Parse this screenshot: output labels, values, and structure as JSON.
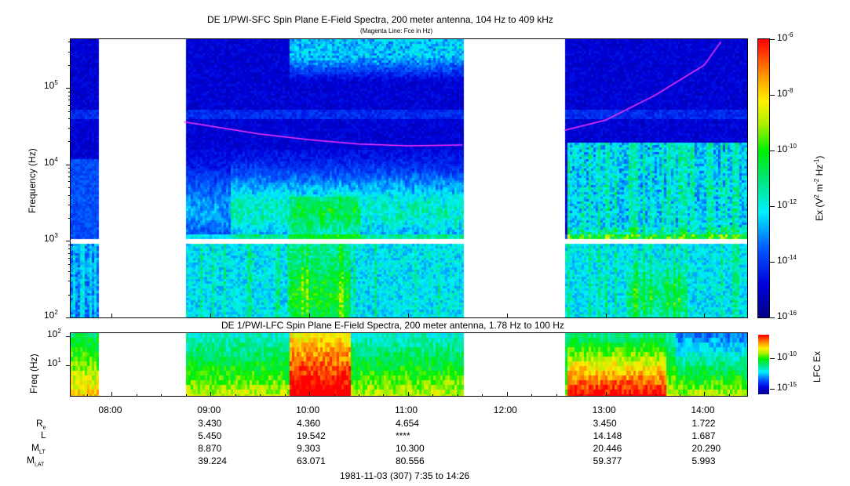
{
  "chart_data": [
    {
      "type": "heatmap",
      "title": "DE 1/PWI-SFC  Spin Plane E-Field Spectra, 200 meter antenna, 104 Hz to 409 kHz",
      "subtitle": "(Magenta Line: Fce in Hz)",
      "ylabel": "Frequency (Hz)",
      "yscale": "log",
      "ylim": [
        100,
        409000
      ],
      "yticks": [
        {
          "v": 100,
          "label": "10",
          "exp": "2"
        },
        {
          "v": 1000,
          "label": "10",
          "exp": "3"
        },
        {
          "v": 10000,
          "label": "10",
          "exp": "4"
        },
        {
          "v": 100000,
          "label": "10",
          "exp": "5"
        }
      ],
      "xlim": [
        "07:35",
        "14:26"
      ],
      "data_gaps": [
        [
          "07:52",
          "08:44"
        ],
        [
          "11:33",
          "12:35"
        ]
      ],
      "colorbar": {
        "label": "Ex (V",
        "label_full": "Ex (V^2 m^-2 Hz^-1)",
        "scale": "log",
        "range": [
          1e-16,
          1e-06
        ],
        "ticks": [
          {
            "v": -6,
            "label": "10",
            "exp": "-6"
          },
          {
            "v": -8,
            "label": "10",
            "exp": "-8"
          },
          {
            "v": -10,
            "label": "10",
            "exp": "-10"
          },
          {
            "v": -12,
            "label": "10",
            "exp": "-12"
          },
          {
            "v": -14,
            "label": "10",
            "exp": "-14"
          },
          {
            "v": -16,
            "label": "10",
            "exp": "-16"
          }
        ],
        "colormap": "rainbow (dark blue to red)"
      },
      "overlay_line": {
        "name": "Fce",
        "color": "#ff33ff",
        "points": [
          [
            "08:44",
            36000
          ],
          [
            "09:30",
            25000
          ],
          [
            "10:00",
            21000
          ],
          [
            "10:30",
            18500
          ],
          [
            "11:00",
            17500
          ],
          [
            "11:33",
            18000
          ],
          [
            "12:35",
            28000
          ],
          [
            "13:00",
            38000
          ],
          [
            "13:30",
            80000
          ],
          [
            "14:00",
            200000
          ],
          [
            "14:10",
            400000
          ]
        ]
      }
    },
    {
      "type": "heatmap",
      "title": "DE 1/PWI-LFC  Spin Plane E-Field Spectra, 200 meter antenna, 1.78 Hz to 100 Hz",
      "ylabel": "Freq (Hz)",
      "yscale": "log",
      "ylim": [
        1.78,
        100
      ],
      "yticks": [
        {
          "v": 10,
          "label": "10",
          "exp": "1"
        },
        {
          "v": 100,
          "label": "10",
          "exp": "2"
        }
      ],
      "xlim": [
        "07:35",
        "14:26"
      ],
      "data_gaps": [
        [
          "07:52",
          "08:44"
        ],
        [
          "11:33",
          "12:35"
        ]
      ],
      "colorbar": {
        "label": "LFC Ex",
        "scale": "log",
        "ticks": [
          {
            "v": -10,
            "label": "10",
            "exp": "-10"
          },
          {
            "v": -15,
            "label": "10",
            "exp": "-15"
          }
        ]
      }
    }
  ],
  "xaxis": {
    "ticks": [
      "08:00",
      "09:00",
      "10:00",
      "11:00",
      "12:00",
      "13:00",
      "14:00"
    ]
  },
  "ephemeris": {
    "rows": [
      {
        "label": "R",
        "sub": "e",
        "values": [
          "3.430",
          "4.360",
          "4.654",
          "",
          "3.450",
          "1.722"
        ]
      },
      {
        "label": "L",
        "sub": "",
        "values": [
          "5.450",
          "19.542",
          "****",
          "",
          "14.148",
          "1.687"
        ]
      },
      {
        "label": "M",
        "sub": "LT",
        "values": [
          "8.870",
          "9.303",
          "10.300",
          "",
          "20.446",
          "20.290"
        ]
      },
      {
        "label": "M",
        "sub": "LAT",
        "values": [
          "39.224",
          "63.071",
          "80.556",
          "",
          "59.377",
          "5.993"
        ]
      }
    ],
    "footer": "1981-11-03 (307) 7:35 to 14:26"
  }
}
